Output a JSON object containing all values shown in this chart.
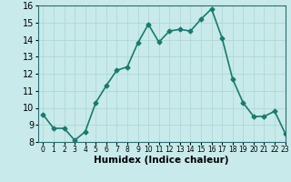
{
  "x": [
    0,
    1,
    2,
    3,
    4,
    5,
    6,
    7,
    8,
    9,
    10,
    11,
    12,
    13,
    14,
    15,
    16,
    17,
    18,
    19,
    20,
    21,
    22,
    23
  ],
  "y": [
    9.6,
    8.8,
    8.8,
    8.1,
    8.6,
    10.3,
    11.3,
    12.2,
    12.4,
    13.8,
    14.9,
    13.85,
    14.5,
    14.6,
    14.5,
    15.2,
    15.8,
    14.1,
    11.7,
    10.3,
    9.5,
    9.5,
    9.8,
    8.5
  ],
  "line_color": "#1a7a6e",
  "marker": "D",
  "marker_size": 2.5,
  "bg_color": "#c8eaea",
  "grid_color": "#b0d8d8",
  "xlabel": "Humidex (Indice chaleur)",
  "xlabel_fontsize": 7.5,
  "ylim": [
    8,
    16
  ],
  "xlim": [
    -0.5,
    23
  ],
  "yticks": [
    8,
    9,
    10,
    11,
    12,
    13,
    14,
    15,
    16
  ],
  "xticks": [
    0,
    1,
    2,
    3,
    4,
    5,
    6,
    7,
    8,
    9,
    10,
    11,
    12,
    13,
    14,
    15,
    16,
    17,
    18,
    19,
    20,
    21,
    22,
    23
  ],
  "ytick_fontsize": 7,
  "xtick_fontsize": 5.5,
  "line_width": 1.2
}
